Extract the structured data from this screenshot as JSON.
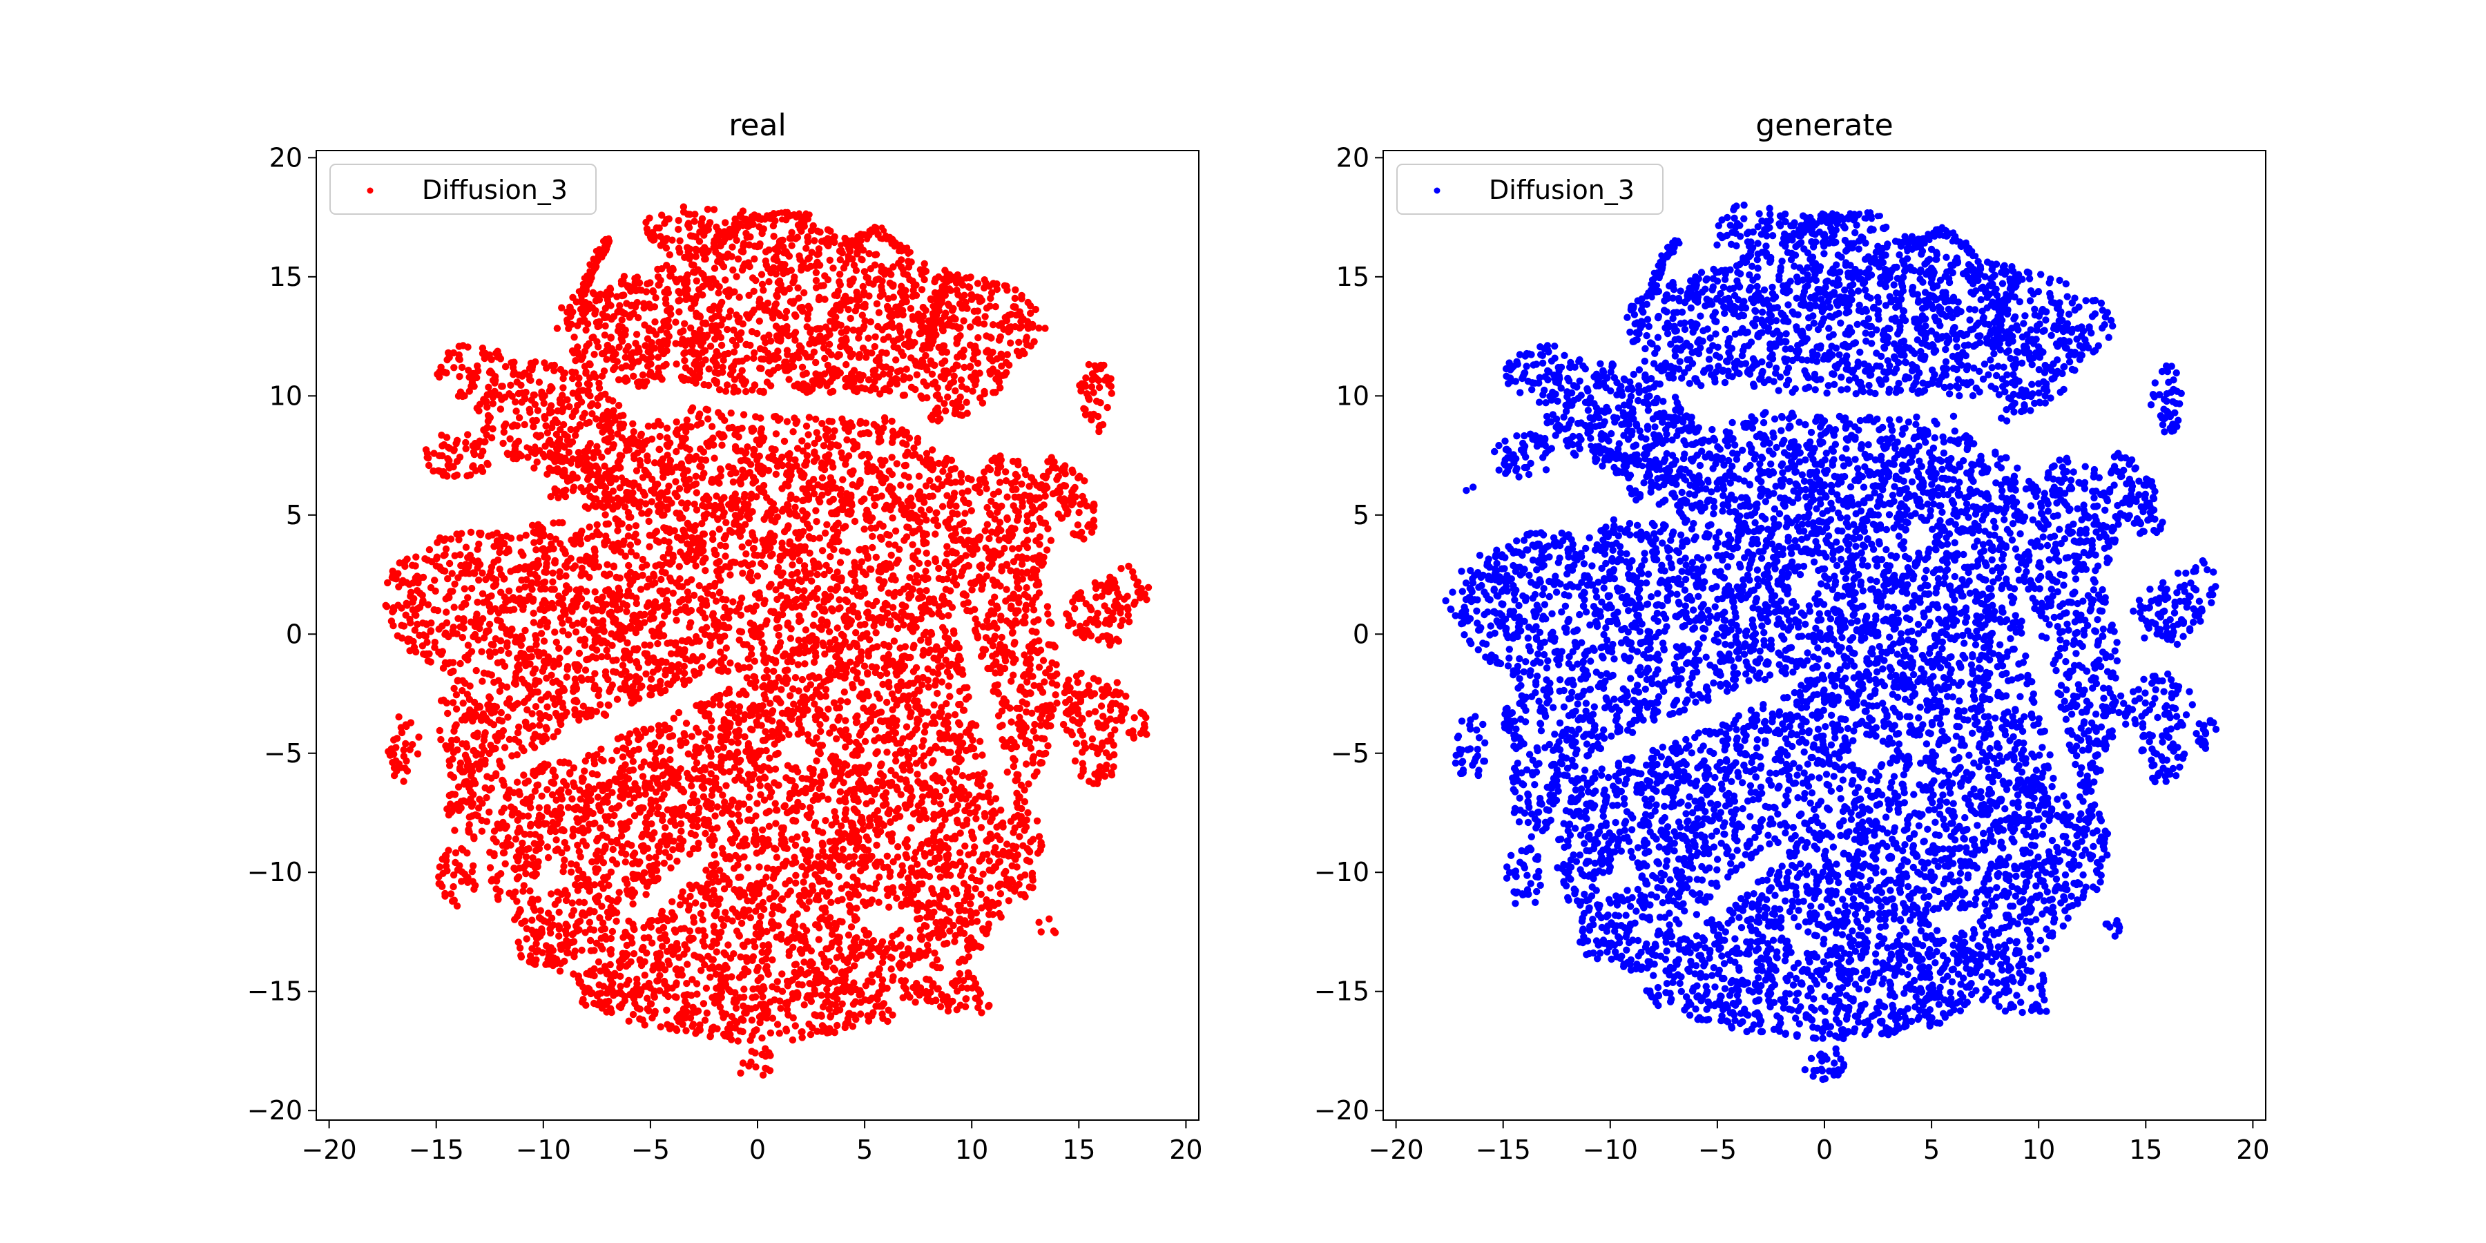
{
  "chart_data": [
    {
      "type": "scatter",
      "title": "real",
      "xlabel": "",
      "ylabel": "",
      "xlim": [
        -20.6,
        20.6
      ],
      "ylim": [
        -20.4,
        20.3
      ],
      "xticks": [
        -20,
        -15,
        -10,
        -5,
        0,
        5,
        10,
        15,
        20
      ],
      "xtick_labels": [
        "−20",
        "−15",
        "−10",
        "−5",
        "0",
        "5",
        "10",
        "15",
        "20"
      ],
      "yticks": [
        -20,
        -15,
        -10,
        -5,
        0,
        5,
        10,
        15,
        20
      ],
      "ytick_labels": [
        "−20",
        "−15",
        "−10",
        "−5",
        "0",
        "5",
        "10",
        "15",
        "20"
      ],
      "grid": false,
      "legend": "top-left",
      "series": [
        {
          "name": "Diffusion_3",
          "color": "#ff0000"
        }
      ],
      "regions": [
        {
          "kind": "ellipse",
          "cx": 0.5,
          "cy": -1.8,
          "rx": 13.5,
          "ry": 11.8,
          "rot": 0
        },
        {
          "kind": "ellipse",
          "cx": -11.5,
          "cy": 0.8,
          "rx": 6.0,
          "ry": 3.4,
          "rot": -10
        },
        {
          "kind": "ellipse",
          "cx": 3.5,
          "cy": -9.0,
          "rx": 9.0,
          "ry": 6.5,
          "rot": 0
        },
        {
          "kind": "ellipse",
          "cx": 0.0,
          "cy": -14.3,
          "rx": 8.5,
          "ry": 2.8,
          "rot": 0
        },
        {
          "kind": "ellipse",
          "cx": 2.0,
          "cy": 13.0,
          "rx": 11.5,
          "ry": 3.0,
          "rot": 0
        },
        {
          "kind": "ellipse",
          "cx": 7.5,
          "cy": 12.0,
          "rx": 4.5,
          "ry": 3.2,
          "rot": 0
        },
        {
          "kind": "ellipse",
          "cx": 0.5,
          "cy": 16.0,
          "rx": 6.0,
          "ry": 1.6,
          "rot": -10
        },
        {
          "kind": "ellipse",
          "cx": -3.5,
          "cy": 17.2,
          "rx": 1.3,
          "ry": 0.9,
          "rot": 0
        },
        {
          "kind": "ellipse",
          "cx": -9.5,
          "cy": 9.0,
          "rx": 4.0,
          "ry": 2.3,
          "rot": -20
        },
        {
          "kind": "ellipse",
          "cx": -13.3,
          "cy": 11.0,
          "rx": 1.7,
          "ry": 1.2,
          "rot": 0
        },
        {
          "kind": "ellipse",
          "cx": -14.0,
          "cy": 7.5,
          "rx": 1.6,
          "ry": 1.0,
          "rot": 0
        },
        {
          "kind": "ellipse",
          "cx": -6.8,
          "cy": 12.2,
          "rx": 2.0,
          "ry": 2.4,
          "rot": 30
        },
        {
          "kind": "ellipse",
          "cx": -12.0,
          "cy": -3.5,
          "rx": 3.0,
          "ry": 2.5,
          "rot": 0
        },
        {
          "kind": "ellipse",
          "cx": -13.5,
          "cy": -6.5,
          "rx": 1.1,
          "ry": 2.2,
          "rot": 0
        },
        {
          "kind": "ellipse",
          "cx": -16.5,
          "cy": -4.8,
          "rx": 0.8,
          "ry": 1.4,
          "rot": 0
        },
        {
          "kind": "ellipse",
          "cx": -14.0,
          "cy": -10.2,
          "rx": 0.9,
          "ry": 1.3,
          "rot": 0
        },
        {
          "kind": "ellipse",
          "cx": -11.0,
          "cy": -8.5,
          "rx": 1.4,
          "ry": 3.0,
          "rot": -15
        },
        {
          "kind": "ellipse",
          "cx": -9.0,
          "cy": -12.5,
          "rx": 2.5,
          "ry": 1.8,
          "rot": 0
        },
        {
          "kind": "ellipse",
          "cx": -6.8,
          "cy": -7.8,
          "rx": 1.8,
          "ry": 1.3,
          "rot": 0
        },
        {
          "kind": "ellipse",
          "cx": -7.5,
          "cy": -15.0,
          "rx": 1.1,
          "ry": 0.7,
          "rot": 0
        },
        {
          "kind": "ellipse",
          "cx": 10.8,
          "cy": 0.3,
          "rx": 1.6,
          "ry": 3.6,
          "rot": 20
        },
        {
          "kind": "ellipse",
          "cx": 12.0,
          "cy": 5.0,
          "rx": 1.6,
          "ry": 2.6,
          "rot": 20
        },
        {
          "kind": "ellipse",
          "cx": 14.5,
          "cy": 5.8,
          "rx": 1.0,
          "ry": 2.0,
          "rot": 30
        },
        {
          "kind": "ellipse",
          "cx": 15.8,
          "cy": 10.0,
          "rx": 0.8,
          "ry": 1.6,
          "rot": 0
        },
        {
          "kind": "ellipse",
          "cx": 16.0,
          "cy": 0.8,
          "rx": 1.6,
          "ry": 1.4,
          "rot": 0
        },
        {
          "kind": "ellipse",
          "cx": 17.3,
          "cy": 2.0,
          "rx": 1.0,
          "ry": 1.2,
          "rot": 0
        },
        {
          "kind": "ellipse",
          "cx": 15.5,
          "cy": -3.0,
          "rx": 1.8,
          "ry": 1.4,
          "rot": 0
        },
        {
          "kind": "ellipse",
          "cx": 15.8,
          "cy": -5.0,
          "rx": 1.0,
          "ry": 1.4,
          "rot": 0
        },
        {
          "kind": "ellipse",
          "cx": 17.8,
          "cy": -4.0,
          "rx": 0.5,
          "ry": 0.8,
          "rot": 0
        },
        {
          "kind": "ellipse",
          "cx": 12.0,
          "cy": -9.0,
          "rx": 1.3,
          "ry": 2.2,
          "rot": 0
        },
        {
          "kind": "ellipse",
          "cx": 13.5,
          "cy": -12.3,
          "rx": 0.5,
          "ry": 0.4,
          "rot": 0
        },
        {
          "kind": "ellipse",
          "cx": 8.8,
          "cy": -14.8,
          "rx": 2.2,
          "ry": 1.1,
          "rot": -20
        },
        {
          "kind": "ellipse",
          "cx": 0.0,
          "cy": -18.0,
          "rx": 1.0,
          "ry": 0.7,
          "rot": 0
        }
      ],
      "holes": [
        {
          "cx": -6.0,
          "cy": -3.6,
          "rx": 6.0,
          "ry": 0.55,
          "rot": 20
        },
        {
          "cx": 3.0,
          "cy": 9.6,
          "rx": 5.5,
          "ry": 0.5,
          "rot": 0
        },
        {
          "cx": 10.5,
          "cy": -3.0,
          "rx": 0.5,
          "ry": 5.0,
          "rot": 15
        },
        {
          "cx": -4.0,
          "cy": -10.5,
          "rx": 2.5,
          "ry": 0.5,
          "rot": 40
        },
        {
          "cx": -11.0,
          "cy": 5.5,
          "rx": 4.0,
          "ry": 0.5,
          "rot": -10
        },
        {
          "cx": 8.0,
          "cy": 8.5,
          "rx": 3.0,
          "ry": 0.5,
          "rot": -30
        },
        {
          "cx": -5.5,
          "cy": 9.8,
          "rx": 2.0,
          "ry": 0.45,
          "rot": -20
        },
        {
          "cx": 2.0,
          "cy": -5.0,
          "rx": 0.8,
          "ry": 0.6,
          "rot": 0
        },
        {
          "cx": -1.0,
          "cy": 2.0,
          "rx": 0.7,
          "ry": 0.5,
          "rot": 0
        },
        {
          "cx": 4.5,
          "cy": 4.0,
          "rx": 0.6,
          "ry": 0.5,
          "rot": 0
        },
        {
          "cx": 6.0,
          "cy": -12.0,
          "rx": 1.2,
          "ry": 0.5,
          "rot": 0
        }
      ],
      "strands": [
        [
          [
            -8.2,
            14.2
          ],
          [
            -7.6,
            15.6
          ],
          [
            -6.9,
            16.6
          ]
        ],
        [
          [
            -2.0,
            16.4
          ],
          [
            0.0,
            17.5
          ],
          [
            2.5,
            17.6
          ]
        ],
        [
          [
            4.0,
            16.2
          ],
          [
            5.5,
            17.0
          ],
          [
            7.0,
            16.0
          ]
        ],
        [
          [
            -5.5,
            6.2
          ],
          [
            -8.5,
            7.2
          ],
          [
            -10.8,
            7.8
          ]
        ],
        [
          [
            9.0,
            15.0
          ],
          [
            8.2,
            13.5
          ],
          [
            8.0,
            12.0
          ]
        ]
      ]
    },
    {
      "type": "scatter",
      "title": "generate",
      "xlabel": "",
      "ylabel": "",
      "xlim": [
        -20.6,
        20.6
      ],
      "ylim": [
        -20.4,
        20.3
      ],
      "xticks": [
        -20,
        -15,
        -10,
        -5,
        0,
        5,
        10,
        15,
        20
      ],
      "xtick_labels": [
        "−20",
        "−15",
        "−10",
        "−5",
        "0",
        "5",
        "10",
        "15",
        "20"
      ],
      "yticks": [
        -20,
        -15,
        -10,
        -5,
        0,
        5,
        10,
        15,
        20
      ],
      "ytick_labels": [
        "−20",
        "−15",
        "−10",
        "−5",
        "0",
        "5",
        "10",
        "15",
        "20"
      ],
      "grid": false,
      "legend": "top-left",
      "series": [
        {
          "name": "Diffusion_3",
          "color": "#0000ff"
        }
      ],
      "regions": [
        {
          "kind": "ellipse",
          "cx": 0.5,
          "cy": -1.8,
          "rx": 13.3,
          "ry": 11.6,
          "rot": 0
        },
        {
          "kind": "ellipse",
          "cx": -11.5,
          "cy": 0.8,
          "rx": 6.0,
          "ry": 3.4,
          "rot": -10
        },
        {
          "kind": "ellipse",
          "cx": 3.5,
          "cy": -9.0,
          "rx": 9.0,
          "ry": 6.5,
          "rot": 0
        },
        {
          "kind": "ellipse",
          "cx": 0.0,
          "cy": -14.3,
          "rx": 8.3,
          "ry": 2.7,
          "rot": 0
        },
        {
          "kind": "ellipse",
          "cx": 2.0,
          "cy": 13.0,
          "rx": 11.5,
          "ry": 3.0,
          "rot": 0
        },
        {
          "kind": "ellipse",
          "cx": 7.5,
          "cy": 12.0,
          "rx": 4.5,
          "ry": 3.2,
          "rot": 0
        },
        {
          "kind": "ellipse",
          "cx": 0.5,
          "cy": 16.0,
          "rx": 6.0,
          "ry": 1.6,
          "rot": -10
        },
        {
          "kind": "ellipse",
          "cx": -3.5,
          "cy": 17.2,
          "rx": 1.3,
          "ry": 0.9,
          "rot": 0
        },
        {
          "kind": "ellipse",
          "cx": -9.5,
          "cy": 9.0,
          "rx": 4.0,
          "ry": 2.3,
          "rot": -20
        },
        {
          "kind": "ellipse",
          "cx": -13.3,
          "cy": 11.0,
          "rx": 1.7,
          "ry": 1.2,
          "rot": 0
        },
        {
          "kind": "ellipse",
          "cx": -14.0,
          "cy": 7.5,
          "rx": 1.6,
          "ry": 1.0,
          "rot": 0
        },
        {
          "kind": "ellipse",
          "cx": -6.8,
          "cy": 12.2,
          "rx": 2.0,
          "ry": 2.4,
          "rot": 30
        },
        {
          "kind": "ellipse",
          "cx": -12.0,
          "cy": -3.5,
          "rx": 3.0,
          "ry": 2.5,
          "rot": 0
        },
        {
          "kind": "ellipse",
          "cx": -13.5,
          "cy": -6.5,
          "rx": 1.1,
          "ry": 2.2,
          "rot": 0
        },
        {
          "kind": "ellipse",
          "cx": -16.5,
          "cy": -4.8,
          "rx": 0.8,
          "ry": 1.4,
          "rot": 0
        },
        {
          "kind": "ellipse",
          "cx": -14.0,
          "cy": -10.2,
          "rx": 0.9,
          "ry": 1.3,
          "rot": 0
        },
        {
          "kind": "ellipse",
          "cx": -11.0,
          "cy": -8.5,
          "rx": 1.4,
          "ry": 3.0,
          "rot": -15
        },
        {
          "kind": "ellipse",
          "cx": -9.0,
          "cy": -12.5,
          "rx": 2.5,
          "ry": 1.8,
          "rot": 0
        },
        {
          "kind": "ellipse",
          "cx": -6.8,
          "cy": -7.8,
          "rx": 1.8,
          "ry": 1.3,
          "rot": 0
        },
        {
          "kind": "ellipse",
          "cx": -7.5,
          "cy": -15.0,
          "rx": 1.1,
          "ry": 0.7,
          "rot": 0
        },
        {
          "kind": "ellipse",
          "cx": 10.8,
          "cy": 0.3,
          "rx": 1.6,
          "ry": 3.6,
          "rot": 20
        },
        {
          "kind": "ellipse",
          "cx": 12.0,
          "cy": 5.0,
          "rx": 1.6,
          "ry": 2.6,
          "rot": 20
        },
        {
          "kind": "ellipse",
          "cx": 14.5,
          "cy": 5.8,
          "rx": 1.0,
          "ry": 2.0,
          "rot": 30
        },
        {
          "kind": "ellipse",
          "cx": 16.0,
          "cy": 10.0,
          "rx": 0.8,
          "ry": 1.6,
          "rot": 0
        },
        {
          "kind": "ellipse",
          "cx": 16.0,
          "cy": 0.8,
          "rx": 1.6,
          "ry": 1.4,
          "rot": 0
        },
        {
          "kind": "ellipse",
          "cx": 17.3,
          "cy": 2.0,
          "rx": 1.0,
          "ry": 1.2,
          "rot": 0
        },
        {
          "kind": "ellipse",
          "cx": 15.5,
          "cy": -3.0,
          "rx": 1.8,
          "ry": 1.4,
          "rot": 0
        },
        {
          "kind": "ellipse",
          "cx": 15.8,
          "cy": -5.0,
          "rx": 1.0,
          "ry": 1.4,
          "rot": 0
        },
        {
          "kind": "ellipse",
          "cx": 17.8,
          "cy": -4.0,
          "rx": 0.5,
          "ry": 0.8,
          "rot": 0
        },
        {
          "kind": "ellipse",
          "cx": 12.0,
          "cy": -9.0,
          "rx": 1.3,
          "ry": 2.2,
          "rot": 0
        },
        {
          "kind": "ellipse",
          "cx": 13.5,
          "cy": -12.3,
          "rx": 0.5,
          "ry": 0.4,
          "rot": 0
        },
        {
          "kind": "ellipse",
          "cx": 8.8,
          "cy": -14.8,
          "rx": 2.2,
          "ry": 1.1,
          "rot": -20
        },
        {
          "kind": "ellipse",
          "cx": 0.0,
          "cy": -18.0,
          "rx": 1.0,
          "ry": 0.7,
          "rot": 0
        },
        {
          "kind": "ellipse",
          "cx": -17.5,
          "cy": 1.2,
          "rx": 0.3,
          "ry": 0.3,
          "rot": 0
        },
        {
          "kind": "ellipse",
          "cx": -16.5,
          "cy": 6.2,
          "rx": 0.3,
          "ry": 0.3,
          "rot": 0
        }
      ],
      "holes": [
        {
          "cx": -6.0,
          "cy": -3.6,
          "rx": 6.0,
          "ry": 0.55,
          "rot": 20
        },
        {
          "cx": 3.0,
          "cy": 9.6,
          "rx": 5.5,
          "ry": 0.5,
          "rot": 0
        },
        {
          "cx": 10.5,
          "cy": -3.0,
          "rx": 0.5,
          "ry": 5.0,
          "rot": 15
        },
        {
          "cx": -4.0,
          "cy": -10.5,
          "rx": 2.5,
          "ry": 0.5,
          "rot": 40
        },
        {
          "cx": -11.0,
          "cy": 5.5,
          "rx": 4.0,
          "ry": 0.5,
          "rot": -10
        },
        {
          "cx": 8.0,
          "cy": 8.5,
          "rx": 3.0,
          "ry": 0.5,
          "rot": -30
        },
        {
          "cx": -5.5,
          "cy": 9.8,
          "rx": 2.0,
          "ry": 0.45,
          "rot": -20
        },
        {
          "cx": 2.0,
          "cy": -5.0,
          "rx": 0.8,
          "ry": 0.6,
          "rot": 0
        },
        {
          "cx": -1.0,
          "cy": 2.0,
          "rx": 0.7,
          "ry": 0.5,
          "rot": 0
        },
        {
          "cx": 4.5,
          "cy": 4.0,
          "rx": 0.6,
          "ry": 0.5,
          "rot": 0
        },
        {
          "cx": 6.0,
          "cy": -12.0,
          "rx": 1.2,
          "ry": 0.5,
          "rot": 0
        }
      ],
      "strands": [
        [
          [
            -8.2,
            14.2
          ],
          [
            -7.6,
            15.6
          ],
          [
            -6.9,
            16.6
          ]
        ],
        [
          [
            -2.0,
            16.4
          ],
          [
            0.0,
            17.5
          ],
          [
            2.5,
            17.6
          ]
        ],
        [
          [
            4.0,
            16.2
          ],
          [
            5.5,
            17.0
          ],
          [
            7.0,
            16.0
          ]
        ],
        [
          [
            -5.5,
            6.2
          ],
          [
            -8.5,
            7.2
          ],
          [
            -10.8,
            7.8
          ]
        ],
        [
          [
            9.0,
            15.0
          ],
          [
            8.2,
            13.5
          ],
          [
            8.0,
            12.0
          ]
        ]
      ]
    }
  ]
}
